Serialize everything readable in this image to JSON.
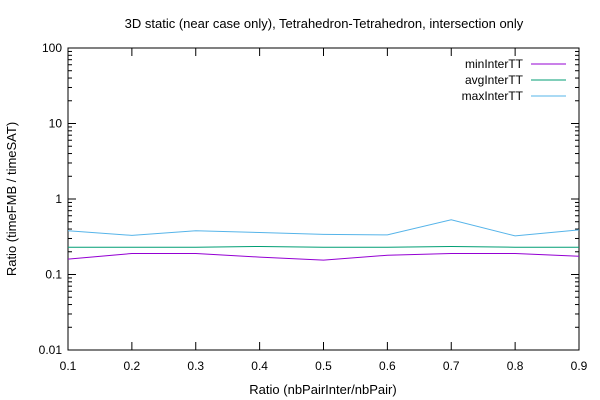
{
  "chart_data": {
    "type": "line",
    "title": "3D static (near case only), Tetrahedron-Tetrahedron, intersection only",
    "xlabel": "Ratio (nbPairInter/nbPair)",
    "ylabel": "Ratio (timeFMB / timeSAT)",
    "x": [
      0.1,
      0.2,
      0.3,
      0.4,
      0.5,
      0.6,
      0.7,
      0.8,
      0.9
    ],
    "xlim": [
      0.1,
      0.9
    ],
    "ylim": [
      0.01,
      100
    ],
    "yscale": "log",
    "x_ticks": [
      "0.1",
      "0.2",
      "0.3",
      "0.4",
      "0.5",
      "0.6",
      "0.7",
      "0.8",
      "0.9"
    ],
    "y_ticks": [
      {
        "value": 0.01,
        "label": "0.01"
      },
      {
        "value": 0.1,
        "label": "0.1"
      },
      {
        "value": 1,
        "label": "1"
      },
      {
        "value": 10,
        "label": "10"
      },
      {
        "value": 100,
        "label": "100"
      }
    ],
    "grid": false,
    "legend_position": "top-right",
    "series": [
      {
        "name": "minInterTT",
        "color": "#9400d3",
        "values": [
          0.16,
          0.19,
          0.19,
          0.17,
          0.155,
          0.18,
          0.19,
          0.19,
          0.175
        ]
      },
      {
        "name": "avgInterTT",
        "color": "#009e73",
        "values": [
          0.23,
          0.23,
          0.23,
          0.235,
          0.23,
          0.23,
          0.235,
          0.23,
          0.23
        ]
      },
      {
        "name": "maxInterTT",
        "color": "#56b4e9",
        "values": [
          0.38,
          0.33,
          0.38,
          0.36,
          0.34,
          0.335,
          0.53,
          0.325,
          0.39
        ]
      }
    ]
  }
}
